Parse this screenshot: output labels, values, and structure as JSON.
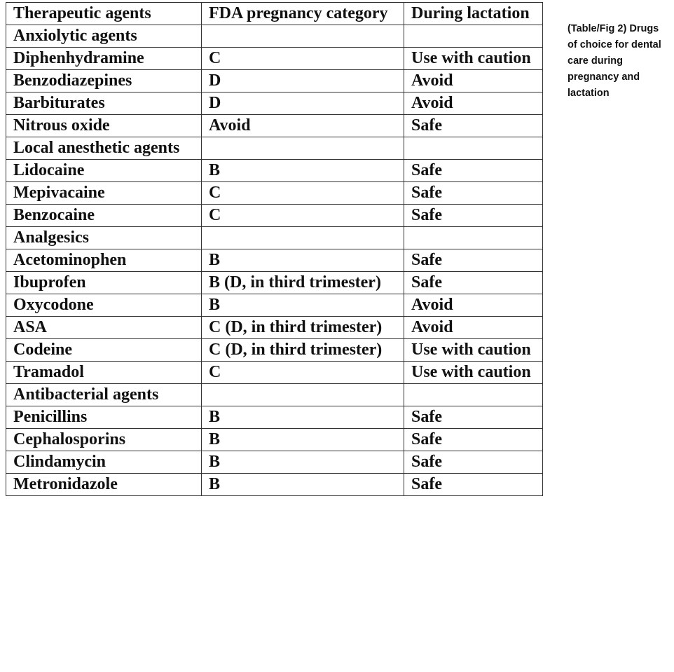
{
  "caption": "(Table/Fig 2) Drugs of choice for dental care during pregnancy and lactation",
  "table": {
    "headers": [
      "Therapeutic agents",
      "FDA pregnancy category",
      "During lactation"
    ],
    "rows": [
      [
        "Anxiolytic agents",
        "",
        ""
      ],
      [
        "Diphenhydramine",
        "C",
        "Use with caution"
      ],
      [
        "Benzodiazepines",
        "D",
        "Avoid"
      ],
      [
        "Barbiturates",
        "D",
        "Avoid"
      ],
      [
        "Nitrous oxide",
        "Avoid",
        "Safe"
      ],
      [
        "Local anesthetic agents",
        "",
        ""
      ],
      [
        "Lidocaine",
        "B",
        "Safe"
      ],
      [
        "Mepivacaine",
        "C",
        "Safe"
      ],
      [
        "Benzocaine",
        "C",
        "Safe"
      ],
      [
        "Analgesics",
        "",
        ""
      ],
      [
        "Acetominophen",
        "B",
        "Safe"
      ],
      [
        "Ibuprofen",
        "B (D, in third trimester)",
        "Safe"
      ],
      [
        "Oxycodone",
        "B",
        "Avoid"
      ],
      [
        "ASA",
        "C (D, in third trimester)",
        "Avoid"
      ],
      [
        "Codeine",
        "C (D, in third trimester)",
        "Use with caution"
      ],
      [
        "Tramadol",
        "C",
        "Use with caution"
      ],
      [
        "Antibacterial agents",
        "",
        ""
      ],
      [
        "Penicillins",
        "B",
        "Safe"
      ],
      [
        "Cephalosporins",
        "B",
        "Safe"
      ],
      [
        "Clindamycin",
        "B",
        "Safe"
      ],
      [
        "Metronidazole",
        "B",
        "Safe"
      ]
    ]
  }
}
